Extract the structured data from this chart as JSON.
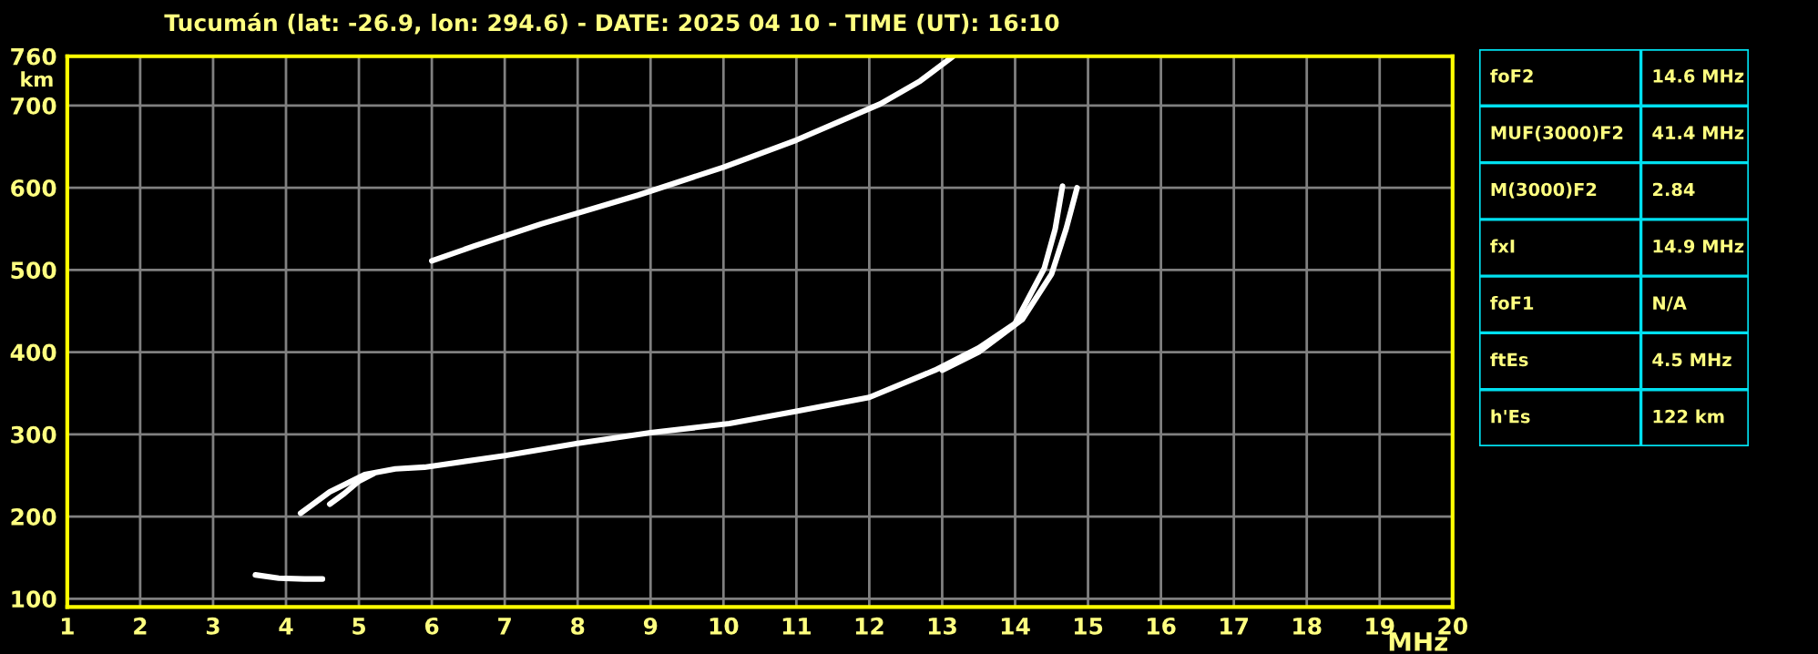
{
  "chart_data": {
    "type": "line",
    "title": "Tucumán (lat: -26.9, lon: 294.6) - DATE: 2025 04 10 - TIME (UT): 16:10",
    "xlabel": "MHz",
    "ylabel": "km",
    "xlim": [
      1,
      20
    ],
    "ylim": [
      90,
      760
    ],
    "xticks": [
      1,
      2,
      3,
      4,
      5,
      6,
      7,
      8,
      9,
      10,
      11,
      12,
      13,
      14,
      15,
      16,
      17,
      18,
      19,
      20
    ],
    "yticks": [
      100,
      200,
      300,
      400,
      500,
      600,
      700,
      760
    ],
    "grid": true,
    "series": [
      {
        "color": "#ffffff",
        "x": [
          4.2,
          4.6,
          5.08,
          5.5,
          5.9,
          7.0,
          8.0,
          9.0,
          10.08,
          11.0,
          12.0,
          12.9,
          13.5,
          14.0,
          14.4,
          14.55,
          14.65
        ],
        "values": [
          204,
          230,
          251,
          258,
          260,
          274,
          289,
          302,
          313,
          328,
          345,
          378,
          405,
          435,
          502,
          550,
          602
        ]
      },
      {
        "color": "#ffffff",
        "x": [
          4.6,
          4.8,
          5.0,
          5.2
        ],
        "values": [
          215,
          228,
          243,
          252
        ]
      },
      {
        "color": "#ffffff",
        "x": [
          13.0,
          13.5,
          14.1,
          14.5,
          14.7,
          14.85
        ],
        "values": [
          378,
          400,
          440,
          495,
          550,
          600
        ]
      },
      {
        "color": "#ffffff",
        "x": [
          6.0,
          6.58,
          7.5,
          8.83,
          10.0,
          11.0,
          12.15,
          12.7,
          13.15
        ],
        "values": [
          511,
          529,
          556,
          591,
          625,
          658,
          702,
          730,
          760
        ]
      },
      {
        "color": "#ffffff",
        "x": [
          3.58,
          3.9,
          4.25,
          4.5
        ],
        "values": [
          129,
          125,
          124,
          124
        ]
      }
    ],
    "annotations": [
      "foF2",
      "14.6 MHz",
      "MUF(3000)F2",
      "41.4 MHz",
      "M(3000)F2",
      "2.84",
      "fxI",
      "14.9 MHz",
      "foF1",
      "N/A",
      "ftEs",
      "4.5 MHz",
      "h'Es",
      "122 km"
    ]
  }
}
